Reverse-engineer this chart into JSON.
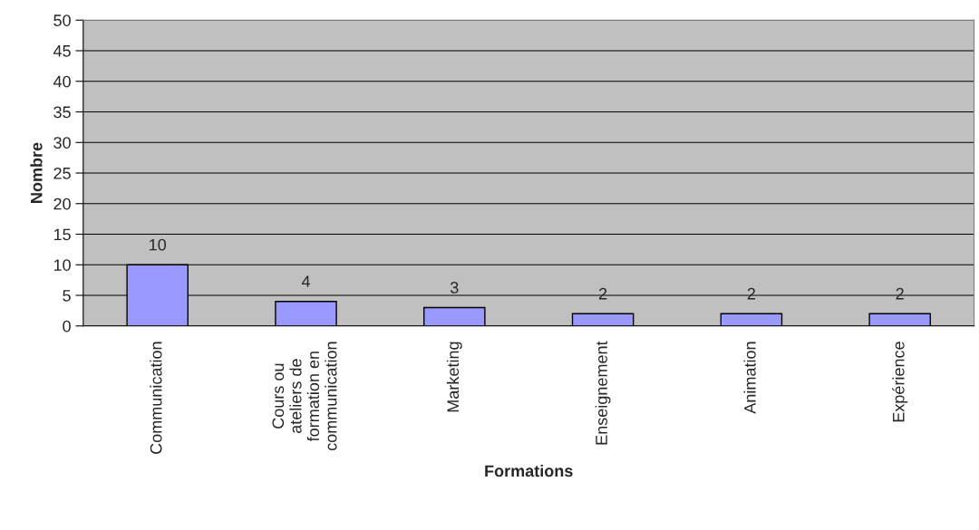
{
  "chart_data": {
    "type": "bar",
    "xlabel": "Formations",
    "ylabel": "Nombre",
    "categories": [
      "Communication",
      "Cours ou\nateliers de\nformation en\ncommunication",
      "Marketing",
      "Enseignement",
      "Animation",
      "Expérience"
    ],
    "values": [
      10,
      4,
      3,
      2,
      2,
      2
    ],
    "color": "#9999ff",
    "ylim": [
      0,
      50
    ],
    "yticks": [
      0,
      5,
      10,
      15,
      20,
      25,
      30,
      35,
      40,
      45,
      50
    ],
    "grid": "y",
    "data_labels": true
  }
}
